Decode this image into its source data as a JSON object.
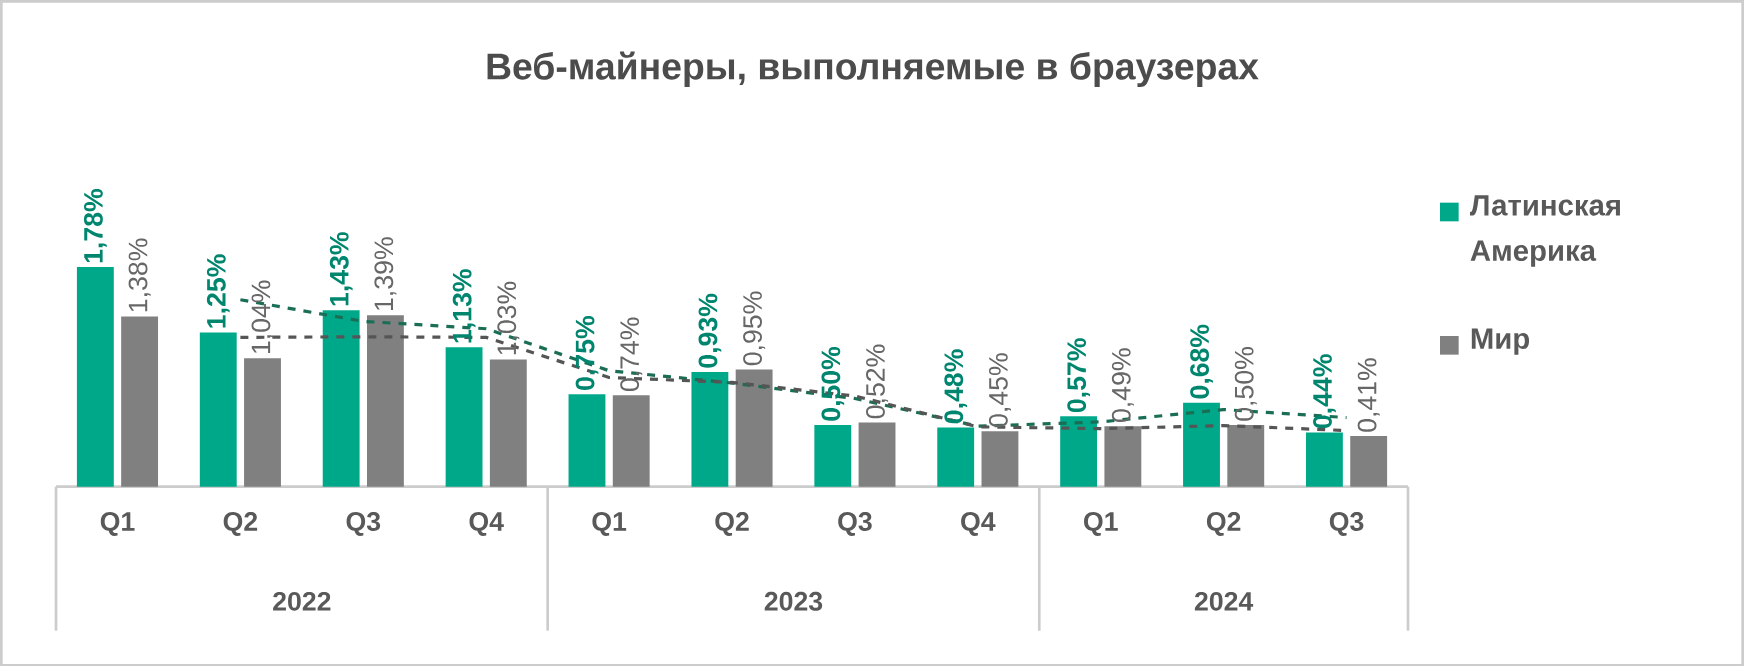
{
  "chart_data": {
    "type": "bar",
    "title": "Веб-майнеры, выполняемые в браузерах",
    "categories": [
      "Q1",
      "Q2",
      "Q3",
      "Q4",
      "Q1",
      "Q2",
      "Q3",
      "Q4",
      "Q1",
      "Q2",
      "Q3"
    ],
    "annotations": [
      "2022",
      "2023",
      "2024"
    ],
    "series": [
      {
        "name": "Латинская Америка",
        "color": "#00a88a",
        "values": [
          1.78,
          1.25,
          1.43,
          1.13,
          0.75,
          0.93,
          0.5,
          0.48,
          0.57,
          0.68,
          0.44
        ],
        "value_labels": [
          "1,78%",
          "1,25%",
          "1,43%",
          "1,13%",
          "0,75%",
          "0,93%",
          "0,50%",
          "0,48%",
          "0,57%",
          "0,68%",
          "0,44%"
        ]
      },
      {
        "name": "Мир",
        "color": "#808080",
        "values": [
          1.38,
          1.04,
          1.39,
          1.03,
          0.74,
          0.95,
          0.52,
          0.45,
          0.49,
          0.5,
          0.41
        ],
        "value_labels": [
          "1,38%",
          "1,04%",
          "1,39%",
          "1,03%",
          "0,74%",
          "0,95%",
          "0,52%",
          "0,45%",
          "0,49%",
          "0,50%",
          "0,41%"
        ]
      },
      {
        "type": "line",
        "line_style": "dashed",
        "color": "#1a6e55",
        "values": [
          null,
          1.515,
          1.34,
          1.28,
          0.94,
          0.84,
          0.715,
          0.49,
          0.525,
          0.625,
          0.56
        ]
      },
      {
        "type": "line",
        "line_style": "dashed",
        "color": "#555555",
        "values": [
          null,
          1.21,
          1.215,
          1.21,
          0.885,
          0.845,
          0.735,
          0.485,
          0.47,
          0.495,
          0.455
        ]
      }
    ],
    "legend": "right"
  }
}
